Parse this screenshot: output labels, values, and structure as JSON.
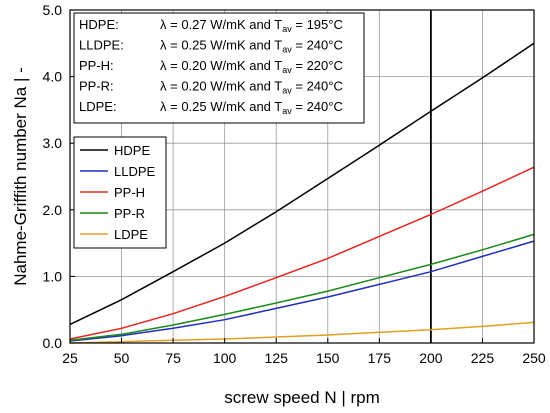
{
  "chart_data": {
    "type": "line",
    "xlabel": "screw speed N  |  rpm",
    "ylabel": "Nahme-Griffith number Na  |  -",
    "xlim": [
      25,
      250
    ],
    "ylim": [
      0.0,
      5.0
    ],
    "xticks": [
      25,
      50,
      75,
      100,
      125,
      150,
      175,
      200,
      225,
      250
    ],
    "yticks": [
      0.0,
      1.0,
      2.0,
      3.0,
      4.0,
      5.0
    ],
    "ytick_labels": [
      "0.0",
      "1.0",
      "2.0",
      "3.0",
      "4.0",
      "5.0"
    ],
    "grid": true,
    "legend_position": "middle-left",
    "vertical_line_x": 200,
    "x": [
      25,
      50,
      75,
      100,
      125,
      150,
      175,
      200,
      225,
      250
    ],
    "series": [
      {
        "name": "HDPE",
        "color": "#000000",
        "values": [
          0.28,
          0.65,
          1.07,
          1.5,
          1.97,
          2.47,
          2.97,
          3.48,
          3.98,
          4.5
        ]
      },
      {
        "name": "LLDPE",
        "color": "#1f2fbf",
        "values": [
          0.03,
          0.11,
          0.22,
          0.35,
          0.52,
          0.69,
          0.88,
          1.07,
          1.3,
          1.53
        ]
      },
      {
        "name": "PP-H",
        "color": "#e8231d",
        "values": [
          0.06,
          0.22,
          0.44,
          0.7,
          0.98,
          1.27,
          1.6,
          1.93,
          2.28,
          2.64
        ]
      },
      {
        "name": "PP-R",
        "color": "#1a8a1a",
        "values": [
          0.04,
          0.13,
          0.27,
          0.43,
          0.6,
          0.78,
          0.98,
          1.18,
          1.4,
          1.63
        ]
      },
      {
        "name": "LDPE",
        "color": "#e0a020",
        "values": [
          0.0,
          0.02,
          0.04,
          0.06,
          0.09,
          0.12,
          0.16,
          0.2,
          0.25,
          0.31
        ]
      }
    ],
    "info_box": [
      {
        "name": "HDPE:",
        "lambda_sym": "λ",
        "text": " = 0.27 W/mK and T",
        "sub": "av",
        "tail": " = 195°C"
      },
      {
        "name": "LLDPE:",
        "lambda_sym": "λ",
        "text": " = 0.25 W/mK and T",
        "sub": "av",
        "tail": " = 240°C"
      },
      {
        "name": "PP-H:",
        "lambda_sym": "λ",
        "text": " = 0.20 W/mK and T",
        "sub": "av",
        "tail": " = 220°C"
      },
      {
        "name": "PP-R:",
        "lambda_sym": "λ",
        "text": " = 0.20 W/mK and T",
        "sub": "av",
        "tail": " = 240°C"
      },
      {
        "name": "LDPE:",
        "lambda_sym": "λ",
        "text": " = 0.25 W/mK and T",
        "sub": "av",
        "tail": " = 240°C"
      }
    ]
  }
}
